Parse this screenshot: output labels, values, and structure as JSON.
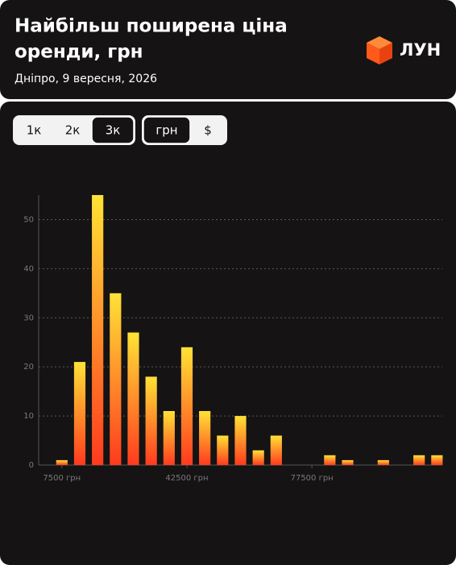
{
  "header": {
    "title": [
      "Найбільш поширена ціна",
      "оренди, грн"
    ],
    "subtitle": "Дніпро, 9 вересня, 2026",
    "logo": "ЛУН"
  },
  "filters": {
    "rooms": {
      "options": [
        "1к",
        "2к",
        "3к"
      ],
      "selected": 2
    },
    "currency": {
      "options": [
        "грн",
        "$"
      ],
      "selected": 0
    }
  },
  "chart_data": {
    "type": "histogram",
    "bins": [
      5000,
      10000,
      15000,
      20000,
      25000,
      30000,
      35000,
      40000,
      45000,
      50000,
      55000,
      60000,
      65000,
      70000,
      75000,
      80000,
      85000,
      90000,
      95000,
      100000,
      105000,
      110000,
      115000
    ],
    "values": [
      1,
      21,
      55,
      35,
      27,
      18,
      11,
      24,
      11,
      6,
      10,
      3,
      6,
      0,
      0,
      2,
      1,
      0,
      1,
      0,
      2,
      2
    ],
    "gradient": [
      "#ffe236",
      "#ff3a1e"
    ],
    "xlim": [
      1000,
      114000
    ],
    "xticks": [
      {
        "value": 7500,
        "label": "7500 грн"
      },
      {
        "value": 42500,
        "label": "42500 грн"
      },
      {
        "value": 77500,
        "label": "77500 грн"
      }
    ],
    "ylim": [
      0,
      55
    ],
    "yticks": [
      0,
      10,
      20,
      30,
      40,
      50
    ],
    "grid": true
  }
}
